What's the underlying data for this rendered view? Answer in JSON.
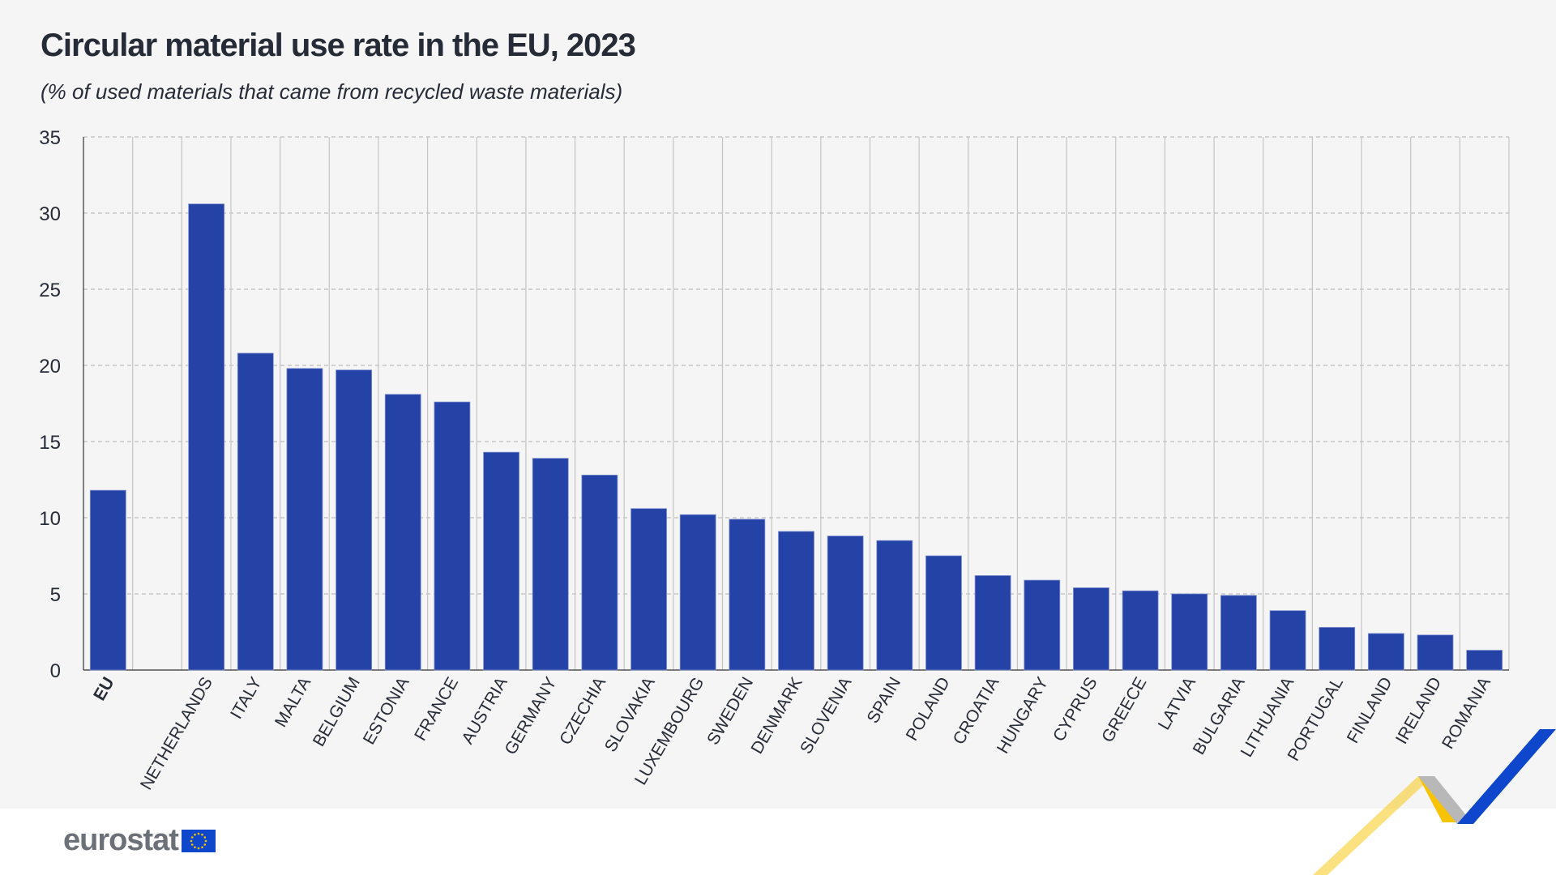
{
  "header": {
    "title": "Circular material use rate in the EU, 2023",
    "subtitle": "(% of used materials that came from recycled waste materials)"
  },
  "logo": {
    "text": "eurostat"
  },
  "colors": {
    "bar": "#2543a6",
    "background": "#f5f5f5",
    "accent_yellow": "#f8c300",
    "accent_blue": "#0e47cb"
  },
  "chart_data": {
    "type": "bar",
    "title": "Circular material use rate in the EU, 2023",
    "subtitle": "(% of used materials that came from recycled waste materials)",
    "xlabel": "",
    "ylabel": "",
    "ylim": [
      0,
      35
    ],
    "yticks": [
      0,
      5,
      10,
      15,
      20,
      25,
      30,
      35
    ],
    "grid": true,
    "categories": [
      "EU",
      "",
      "NETHERLANDS",
      "ITALY",
      "MALTA",
      "BELGIUM",
      "ESTONIA",
      "FRANCE",
      "AUSTRIA",
      "GERMANY",
      "CZECHIA",
      "SLOVAKIA",
      "LUXEMBOURG",
      "SWEDEN",
      "DENMARK",
      "SLOVENIA",
      "SPAIN",
      "POLAND",
      "CROATIA",
      "HUNGARY",
      "CYPRUS",
      "GREECE",
      "LATVIA",
      "BULGARIA",
      "LITHUANIA",
      "PORTUGAL",
      "FINLAND",
      "IRELAND",
      "ROMANIA"
    ],
    "values": [
      11.8,
      null,
      30.6,
      20.8,
      19.8,
      19.7,
      18.1,
      17.6,
      14.3,
      13.9,
      12.8,
      10.6,
      10.2,
      9.9,
      9.1,
      8.8,
      8.5,
      7.5,
      6.2,
      5.9,
      5.4,
      5.2,
      5.0,
      4.9,
      3.9,
      2.8,
      2.4,
      2.3,
      1.3
    ]
  }
}
